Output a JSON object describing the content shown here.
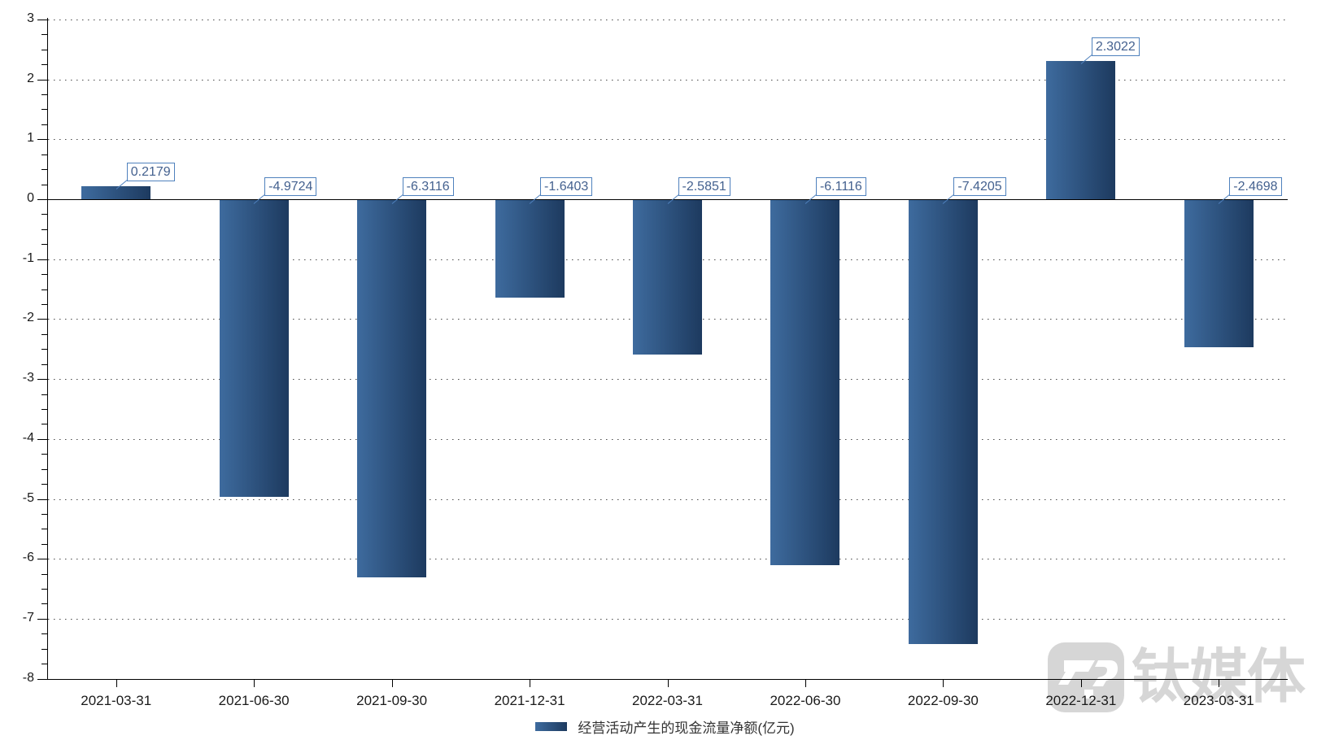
{
  "chart_data": {
    "type": "bar",
    "title": "",
    "xlabel": "",
    "ylabel": "",
    "x": [
      "2021-03-31",
      "2021-06-30",
      "2021-09-30",
      "2021-12-31",
      "2022-03-31",
      "2022-06-30",
      "2022-09-30",
      "2022-12-31",
      "2023-03-31"
    ],
    "series": [
      {
        "name": "经营活动产生的现金流量净额(亿元)",
        "values": [
          0.2179,
          -4.9724,
          -6.3116,
          -1.6403,
          -2.5851,
          -6.1116,
          -7.4205,
          2.3022,
          -2.4698
        ],
        "labels": [
          "0.2179",
          "-4.9724",
          "-6.3116",
          "-1.6403",
          "-2.5851",
          "-6.1116",
          "-7.4205",
          "2.3022",
          "-2.4698"
        ]
      }
    ],
    "ylim": [
      -8,
      3
    ],
    "y_tick_labels": [
      "3",
      "2",
      "1",
      "0",
      "-1",
      "-2",
      "-3",
      "-4",
      "-5",
      "-6",
      "-7",
      "-8"
    ],
    "y_minor_tick_interval": 0.25,
    "grid": "horizontal dotted lines at each integer",
    "legend_position": "bottom-center",
    "annotations": "each bar labeled with its value in a blue-bordered callout box"
  },
  "legend": {
    "label": "经营活动产生的现金流量净额(亿元)"
  },
  "watermark": {
    "text": "钛媒体",
    "logo_icon": "tmtpost-logo"
  },
  "colors": {
    "bar_gradient_start": "#3e6b9e",
    "bar_gradient_end": "#1d3a5f",
    "annotation_border": "#4f81bd",
    "annotation_text": "#44618f",
    "axis": "#000000",
    "gridline_dots": "#4a4a4a",
    "tick_label": "#1a1a1a",
    "legend_text": "#333333",
    "watermark": "#d6d6d6"
  }
}
